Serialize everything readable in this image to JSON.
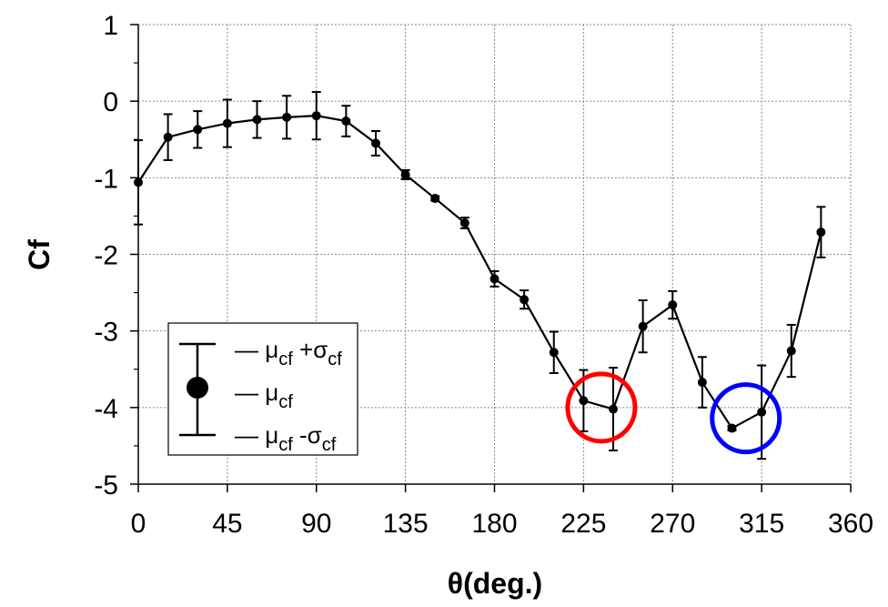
{
  "chart_data": {
    "type": "line",
    "xlabel": "θ(deg.)",
    "ylabel": "Cf",
    "xlim": [
      0,
      360
    ],
    "ylim": [
      -5,
      1
    ],
    "xticks": [
      "0",
      "45",
      "90",
      "135",
      "180",
      "225",
      "270",
      "315",
      "360"
    ],
    "yticks": [
      "1",
      "0",
      "-1",
      "-2",
      "-3",
      "-4",
      "-5"
    ],
    "grid": "dashed",
    "legend_position": "bottom-left",
    "legend": {
      "upper_prefix": "— μ",
      "upper_sub": "cf",
      "upper_op": " +σ",
      "upper_sub2": "cf",
      "mean_prefix": "— μ",
      "mean_sub": "cf",
      "lower_prefix": "— μ",
      "lower_sub": "cf",
      "lower_op": " -σ",
      "lower_sub2": "cf"
    },
    "series": [
      {
        "x": [
          0,
          15,
          30,
          45,
          60,
          75,
          90,
          105,
          120,
          135,
          150,
          165,
          180,
          195,
          210,
          225,
          240,
          255,
          270,
          285,
          300,
          315,
          330,
          345
        ],
        "mean": [
          -1.06,
          -0.47,
          -0.37,
          -0.29,
          -0.24,
          -0.21,
          -0.19,
          -0.26,
          -0.55,
          -0.96,
          -1.27,
          -1.59,
          -2.32,
          -2.59,
          -3.28,
          -3.91,
          -4.02,
          -2.94,
          -2.66,
          -3.67,
          -4.27,
          -4.06,
          -3.26,
          -1.71
        ],
        "std": [
          0.55,
          0.3,
          0.24,
          0.31,
          0.24,
          0.28,
          0.31,
          0.2,
          0.16,
          0.06,
          0.03,
          0.07,
          0.1,
          0.12,
          0.27,
          0.4,
          0.54,
          0.34,
          0.18,
          0.33,
          0.03,
          0.61,
          0.34,
          0.33
        ]
      }
    ],
    "annotations": [
      {
        "shape": "circle",
        "color": "#ff0000",
        "x": 234,
        "y": -4.0
      },
      {
        "shape": "circle",
        "color": "#0000ff",
        "x": 307,
        "y": -4.14
      }
    ]
  }
}
